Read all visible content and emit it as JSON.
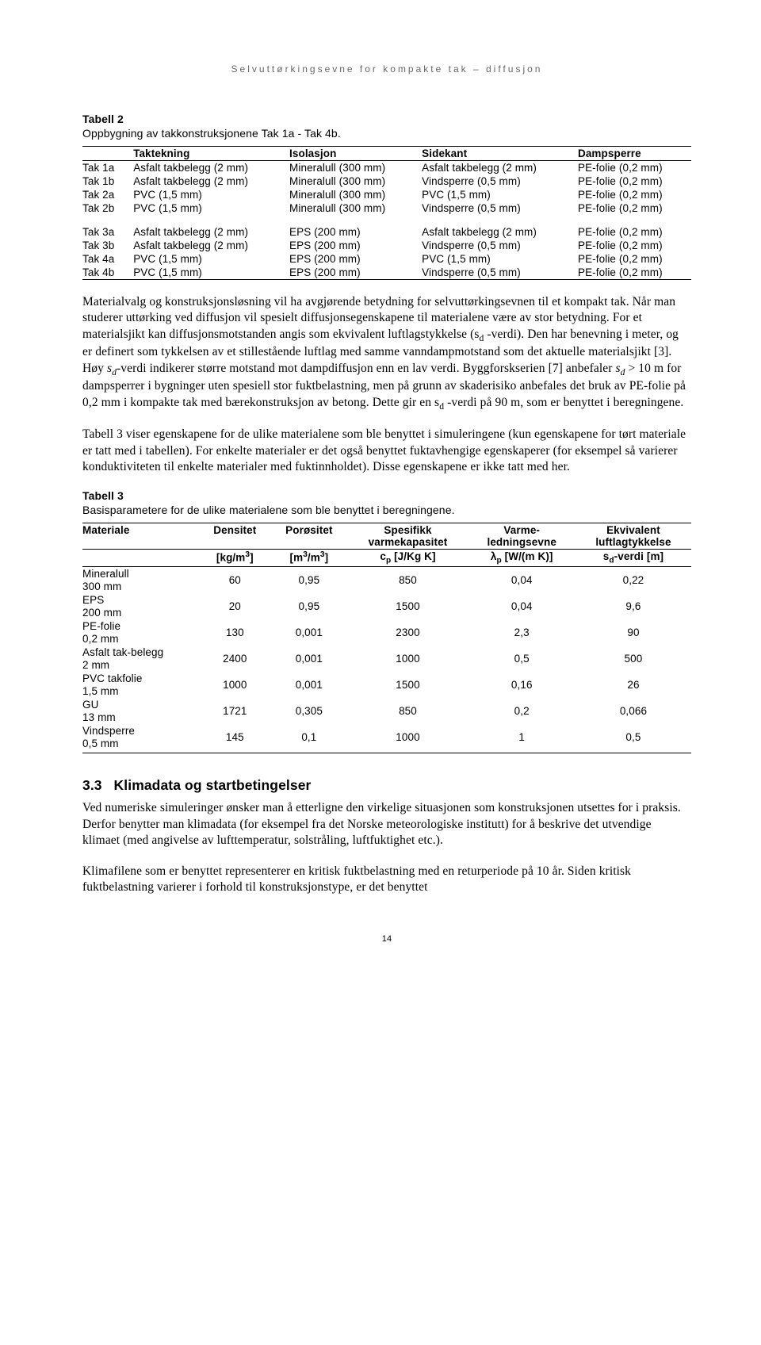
{
  "header": "Selvuttørkingsevne for kompakte tak – diffusjon",
  "table1": {
    "title": "Tabell 2",
    "subtitle": "Oppbygning av takkonstruksjonene Tak 1a - Tak 4b.",
    "headers": [
      "",
      "Taktekning",
      "Isolasjon",
      "Sidekant",
      "Dampsperre"
    ],
    "rows": [
      [
        "Tak 1a",
        "Asfalt takbelegg (2 mm)",
        "Mineralull (300 mm)",
        "Asfalt takbelegg (2 mm)",
        "PE-folie (0,2 mm)"
      ],
      [
        "Tak 1b",
        "Asfalt takbelegg (2 mm)",
        "Mineralull (300 mm)",
        "Vindsperre (0,5 mm)",
        "PE-folie (0,2 mm)"
      ],
      [
        "Tak 2a",
        "PVC (1,5 mm)",
        "Mineralull (300 mm)",
        "PVC (1,5 mm)",
        "PE-folie (0,2 mm)"
      ],
      [
        "Tak 2b",
        "PVC (1,5 mm)",
        "Mineralull (300 mm)",
        "Vindsperre (0,5 mm)",
        "PE-folie (0,2 mm)"
      ],
      [
        "Tak 3a",
        "Asfalt takbelegg (2 mm)",
        "EPS (200 mm)",
        "Asfalt takbelegg (2 mm)",
        "PE-folie (0,2 mm)"
      ],
      [
        "Tak 3b",
        "Asfalt takbelegg (2 mm)",
        "EPS (200 mm)",
        "Vindsperre (0,5 mm)",
        "PE-folie (0,2 mm)"
      ],
      [
        "Tak 4a",
        "PVC (1,5 mm)",
        "EPS (200 mm)",
        "PVC (1,5 mm)",
        "PE-folie (0,2 mm)"
      ],
      [
        "Tak 4b",
        "PVC (1,5 mm)",
        "EPS (200 mm)",
        "Vindsperre (0,5 mm)",
        "PE-folie (0,2 mm)"
      ]
    ]
  },
  "para1": "Materialvalg og konstruksjonsløsning vil ha avgjørende betydning for selvuttørkingsevnen til et kompakt tak. Når man studerer uttørking ved diffusjon vil spesielt diffusjonsegenskapene til materialene være av stor betydning. For et materialsjikt kan diffusjonsmotstanden angis som ekvivalent luftlagstykkelse (s",
  "para1_sub1": "d",
  "para1_cont1": " -verdi). Den har benevning i meter, og er definert som tykkelsen av et stillestående luftlag med samme vanndampmotstand som det aktuelle materialsjikt [3]. Høy ",
  "para1_i1": "s",
  "para1_sub2": "d",
  "para1_cont2": "-verdi indikerer større motstand mot dampdiffusjon enn en lav verdi. Byggforskserien [7] anbefaler ",
  "para1_i2": "s",
  "para1_sub3": "d",
  "para1_cont3": " > 10 m for dampsperrer i bygninger uten spesiell stor fuktbelastning, men på grunn av skaderisiko anbefales det bruk av PE-folie på 0,2 mm i kompakte tak med bærekonstruksjon av betong. Dette gir en s",
  "para1_sub4": "d",
  "para1_cont4": " -verdi på 90 m, som er benyttet i beregningene.",
  "para2": "Tabell 3 viser egenskapene for de ulike materialene som ble benyttet i simuleringene (kun egenskapene for tørt materiale er tatt med i tabellen). For enkelte materialer er det også benyttet fuktavhengige egenskaperer (for eksempel så varierer konduktiviteten til enkelte materialer med fuktinnholdet). Disse egenskapene er ikke tatt med her.",
  "table2": {
    "title": "Tabell 3",
    "subtitle": "Basisparametere for de ulike materialene som ble benyttet i beregningene.",
    "head_row1": [
      "Materiale",
      "Densitet",
      "Porøsitet",
      "Spesifikk varmekapasitet",
      "Varme-ledningsevne",
      "Ekvivalent luftlagtykkelse"
    ],
    "head_row2": [
      "",
      "[kg/m³]",
      "[m³/m³]",
      "cₚ [J/Kg K]",
      "λₚ [W/(m K)]",
      "sₔ-verdi [m]"
    ],
    "rows": [
      [
        "Mineralull 300 mm",
        "60",
        "0,95",
        "850",
        "0,04",
        "0,22"
      ],
      [
        "EPS 200 mm",
        "20",
        "0,95",
        "1500",
        "0,04",
        "9,6"
      ],
      [
        "PE-folie 0,2 mm",
        "130",
        "0,001",
        "2300",
        "2,3",
        "90"
      ],
      [
        "Asfalt tak-belegg 2 mm",
        "2400",
        "0,001",
        "1000",
        "0,5",
        "500"
      ],
      [
        "PVC takfolie 1,5 mm",
        "1000",
        "0,001",
        "1500",
        "0,16",
        "26"
      ],
      [
        "GU 13 mm",
        "1721",
        "0,305",
        "850",
        "0,2",
        "0,066"
      ],
      [
        "Vindsperre 0,5 mm",
        "145",
        "0,1",
        "1000",
        "1",
        "0,5"
      ]
    ]
  },
  "section": {
    "num": "3.3",
    "title": "Klimadata og startbetingelser"
  },
  "para3": "Ved numeriske simuleringer ønsker man å etterligne den virkelige situasjonen som konstruksjonen utsettes for i praksis. Derfor benytter man klimadata (for eksempel fra det Norske meteorologiske institutt) for å beskrive det utvendige klimaet (med angivelse av lufttemperatur, solstråling, luftfuktighet etc.).",
  "para4": "Klimafilene som er benyttet representerer en kritisk fuktbelastning med en returperiode på 10 år. Siden kritisk fuktbelastning varierer i forhold til konstruksjonstype, er det benyttet",
  "page_num": "14"
}
